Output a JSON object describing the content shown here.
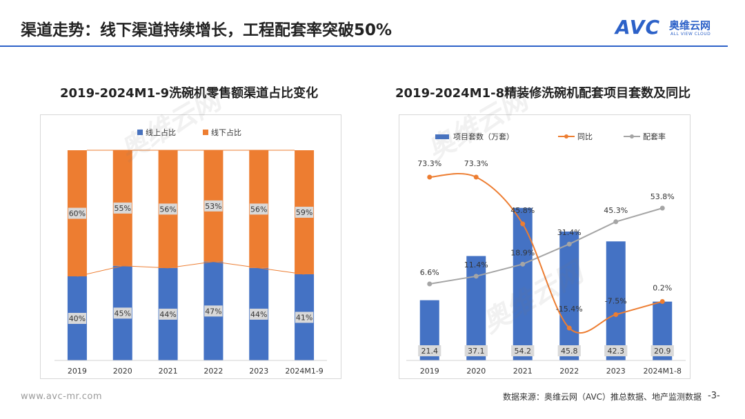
{
  "header": {
    "title": "渠道走势：线下渠道持续增长，工程配套率突破50%",
    "logo_mark": "AVC",
    "logo_cn": "奥维云网",
    "logo_en": "ALL VIEW CLOUD"
  },
  "colors": {
    "blue": "#4472c4",
    "orange": "#ed7d31",
    "gray": "#a5a5a5",
    "accent": "#2c61c8"
  },
  "footer": {
    "url": "www.avc-mr.com",
    "source": "数据来源：奥维云网（AVC）推总数据、地产监测数据",
    "page": "-3-"
  },
  "chart_data": [
    {
      "type": "bar",
      "stacked": true,
      "title": "2019-2024M1-9洗碗机零售额渠道占比变化",
      "categories": [
        "2019",
        "2020",
        "2021",
        "2022",
        "2023",
        "2024M1-9"
      ],
      "series": [
        {
          "name": "线上占比",
          "values": [
            40,
            45,
            44,
            47,
            44,
            41
          ],
          "labels": [
            "40%",
            "45%",
            "44%",
            "47%",
            "44%",
            "41%"
          ]
        },
        {
          "name": "线下占比",
          "values": [
            60,
            55,
            56,
            53,
            56,
            59
          ],
          "labels": [
            "60%",
            "55%",
            "56%",
            "53%",
            "56%",
            "59%"
          ]
        }
      ],
      "ylim": [
        0,
        100
      ],
      "legend": "top-left",
      "grid": false
    },
    {
      "type": "bar",
      "title": "2019-2024M1-8精装修洗碗机配套项目套数及同比",
      "categories": [
        "2019",
        "2020",
        "2021",
        "2022",
        "2023",
        "2024M1-8"
      ],
      "series": [
        {
          "name": "项目套数（万套）",
          "kind": "bar",
          "values": [
            21.4,
            37.1,
            54.2,
            45.8,
            42.3,
            20.9
          ],
          "labels": [
            "21.4",
            "37.1",
            "54.2",
            "45.8",
            "42.3",
            "20.9"
          ]
        },
        {
          "name": "同比",
          "kind": "line",
          "values": [
            73.3,
            73.3,
            45.8,
            -15.4,
            -7.5,
            0.2
          ],
          "labels": [
            "73.3%",
            "73.3%",
            "45.8%",
            "-15.4%",
            "-7.5%",
            "0.2%"
          ]
        },
        {
          "name": "配套率",
          "kind": "line",
          "values": [
            6.6,
            11.4,
            18.9,
            31.4,
            45.3,
            53.8
          ],
          "labels": [
            "6.6%",
            "11.4%",
            "18.9%",
            "31.4%",
            "45.3%",
            "53.8%"
          ]
        }
      ],
      "legend": "top",
      "grid": false
    }
  ]
}
